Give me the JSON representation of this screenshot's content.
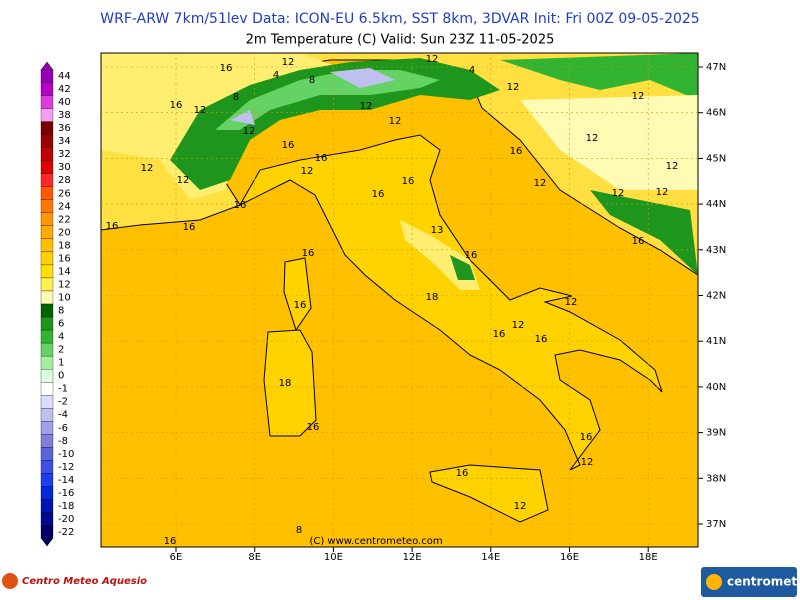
{
  "header": {
    "title": "WRF-ARW 7km/51lev  Data: ICON-EU 6.5km, SST 8km, 3DVAR  Init: Fri 00Z 09-05-2025",
    "subtitle": "2m Temperature (C)  Valid: Sun 23Z 11-05-2025"
  },
  "legend": {
    "labels": [
      "44",
      "42",
      "40",
      "38",
      "36",
      "34",
      "32",
      "30",
      "28",
      "26",
      "24",
      "22",
      "20",
      "18",
      "16",
      "14",
      "12",
      "10",
      "8",
      "6",
      "4",
      "2",
      "1",
      "0",
      "-1",
      "-2",
      "-4",
      "-6",
      "-8",
      "-10",
      "-12",
      "-14",
      "-16",
      "-18",
      "-20",
      "-22"
    ],
    "colors": [
      "#9600b4",
      "#b400c8",
      "#dc3cdc",
      "#f0a0f0",
      "#780000",
      "#9b0000",
      "#be0000",
      "#e10000",
      "#ff2828",
      "#ff5a00",
      "#ff7800",
      "#ff9600",
      "#ffaa00",
      "#ffc000",
      "#ffd200",
      "#ffe100",
      "#fff050",
      "#fffab4",
      "#006400",
      "#1e961e",
      "#32b432",
      "#64d264",
      "#a0f0a0",
      "#dcffdc",
      "#ffffff",
      "#dcdcff",
      "#c0c0f0",
      "#a0a0e6",
      "#8080dc",
      "#5a64dc",
      "#3c50e6",
      "#1e3cf0",
      "#0028dc",
      "#0014b4",
      "#000a8c",
      "#000064"
    ]
  },
  "map": {
    "lat_labels": [
      "47N",
      "46N",
      "45N",
      "44N",
      "43N",
      "42N",
      "41N",
      "40N",
      "39N",
      "38N",
      "37N"
    ],
    "lon_labels": [
      "6E",
      "8E",
      "10E",
      "12E",
      "14E",
      "16E",
      "18E"
    ],
    "contour_labels": [
      "16",
      "12",
      "4",
      "8",
      "12",
      "4",
      "8",
      "12",
      "16",
      "12",
      "12",
      "12",
      "16",
      "12",
      "16",
      "16",
      "16",
      "16",
      "12",
      "12",
      "12",
      "16",
      "13",
      "16",
      "12",
      "16",
      "16",
      "12",
      "12",
      "16",
      "12",
      "16",
      "16",
      "18",
      "16",
      "18",
      "16",
      "16",
      "16",
      "12",
      "12",
      "16",
      "12",
      "12",
      "8",
      "16",
      "12",
      "12"
    ],
    "credit": "(C) www.centrometeo.com"
  },
  "logos": {
    "left": "Centro Meteo Aquesio",
    "right": "centrometeo"
  }
}
